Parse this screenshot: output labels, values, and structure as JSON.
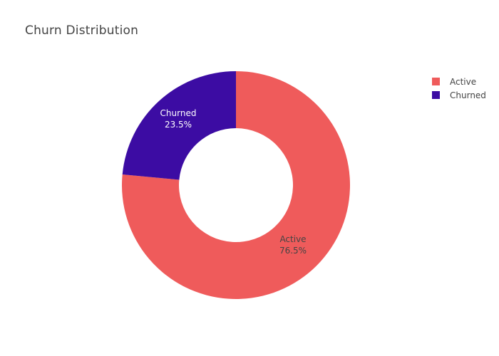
{
  "chart_data": {
    "type": "pie",
    "hole": true,
    "title": "Churn Distribution",
    "labels": [
      "Active",
      "Churned"
    ],
    "values": [
      76.5,
      23.5
    ],
    "value_labels": [
      "76.5%",
      "23.5%"
    ],
    "colors": [
      "#EF5B5B",
      "#3C0CA3"
    ],
    "label_colors": [
      "#444444",
      "#ffffff"
    ],
    "legend_position": "top-right",
    "direction": "clockwise",
    "start": "top"
  }
}
